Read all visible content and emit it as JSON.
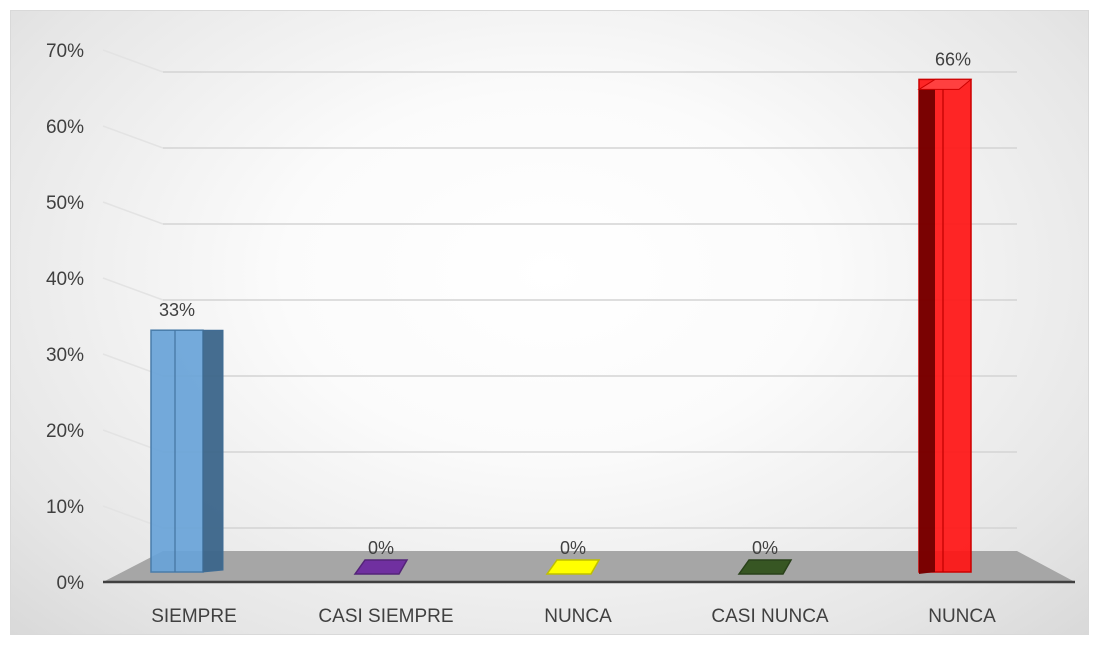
{
  "chart_data": {
    "type": "bar",
    "title": "",
    "xlabel": "",
    "ylabel": "",
    "categories": [
      "SIEMPRE",
      "CASI SIEMPRE",
      "NUNCA",
      "CASI NUNCA",
      "NUNCA"
    ],
    "values": [
      0.33,
      0,
      0,
      0,
      0.66
    ],
    "data_labels": [
      "33%",
      "0%",
      "0%",
      "0%",
      "66%"
    ],
    "ylim": [
      0,
      0.7
    ],
    "yticks": [
      "0%",
      "10%",
      "20%",
      "30%",
      "40%",
      "50%",
      "60%",
      "70%"
    ],
    "colors": [
      "#5b9bd5",
      "#7030a0",
      "#ffff00",
      "#375623",
      "#ff0000"
    ],
    "grid": true,
    "legend": "none",
    "style": "3d-column"
  }
}
